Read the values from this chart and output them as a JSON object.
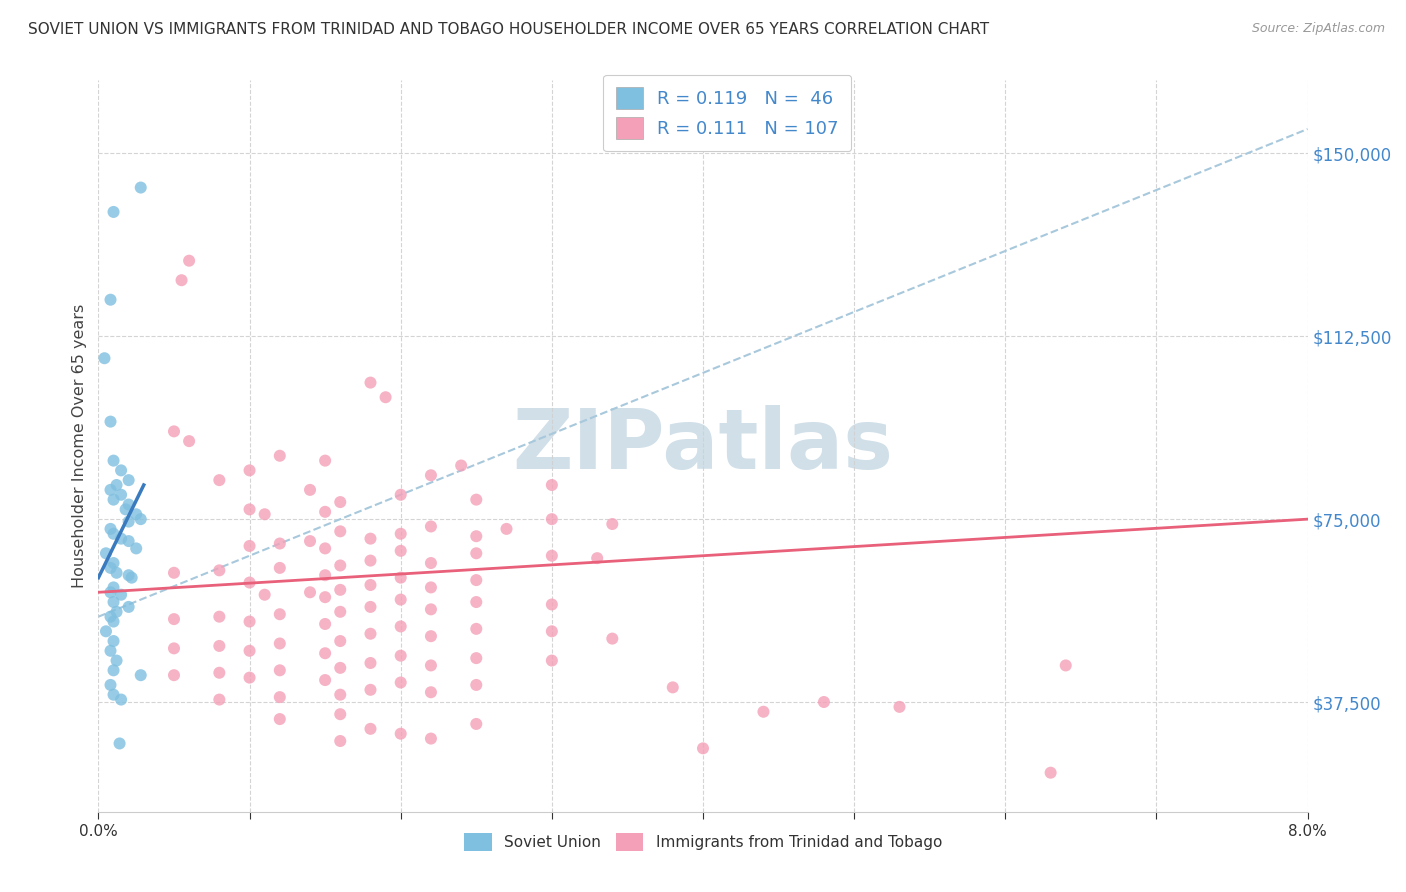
{
  "title": "SOVIET UNION VS IMMIGRANTS FROM TRINIDAD AND TOBAGO HOUSEHOLDER INCOME OVER 65 YEARS CORRELATION CHART",
  "source": "Source: ZipAtlas.com",
  "ylabel": "Householder Income Over 65 years",
  "ytick_labels": [
    "$37,500",
    "$75,000",
    "$112,500",
    "$150,000"
  ],
  "ytick_values": [
    37500,
    75000,
    112500,
    150000
  ],
  "xmin": 0.0,
  "xmax": 0.08,
  "ymin": 15000,
  "ymax": 165000,
  "legend_line1": "R = 0.119   N =  46",
  "legend_line2": "R = 0.111   N = 107",
  "color_blue": "#7fbfdf",
  "color_pink": "#f4a0b8",
  "color_blue_line": "#3a7bbf",
  "color_pink_line": "#e8607a",
  "color_dashed": "#a8c8dc",
  "watermark": "ZIPatlas",
  "watermark_color": "#d0dfe8",
  "blue_line_x": [
    0.0,
    0.003
  ],
  "blue_line_y": [
    63000,
    82000
  ],
  "pink_line_x": [
    0.0,
    0.08
  ],
  "pink_line_y": [
    60000,
    75000
  ],
  "dashed_line_x": [
    0.0,
    0.08
  ],
  "dashed_line_y": [
    55000,
    155000
  ],
  "soviet_points": [
    [
      0.001,
      138000
    ],
    [
      0.0028,
      143000
    ],
    [
      0.0008,
      120000
    ],
    [
      0.0004,
      108000
    ],
    [
      0.0008,
      95000
    ],
    [
      0.001,
      87000
    ],
    [
      0.0015,
      85000
    ],
    [
      0.002,
      83000
    ],
    [
      0.0012,
      82000
    ],
    [
      0.0008,
      81000
    ],
    [
      0.0015,
      80000
    ],
    [
      0.001,
      79000
    ],
    [
      0.002,
      78000
    ],
    [
      0.0018,
      77000
    ],
    [
      0.0025,
      76000
    ],
    [
      0.0028,
      75000
    ],
    [
      0.002,
      74500
    ],
    [
      0.0008,
      73000
    ],
    [
      0.001,
      72000
    ],
    [
      0.0015,
      71000
    ],
    [
      0.002,
      70500
    ],
    [
      0.0025,
      69000
    ],
    [
      0.0005,
      68000
    ],
    [
      0.001,
      66000
    ],
    [
      0.0008,
      65000
    ],
    [
      0.0012,
      64000
    ],
    [
      0.002,
      63500
    ],
    [
      0.0022,
      63000
    ],
    [
      0.001,
      61000
    ],
    [
      0.0008,
      60000
    ],
    [
      0.0015,
      59500
    ],
    [
      0.001,
      58000
    ],
    [
      0.002,
      57000
    ],
    [
      0.0012,
      56000
    ],
    [
      0.0008,
      55000
    ],
    [
      0.001,
      54000
    ],
    [
      0.0005,
      52000
    ],
    [
      0.001,
      50000
    ],
    [
      0.0008,
      48000
    ],
    [
      0.0012,
      46000
    ],
    [
      0.001,
      44000
    ],
    [
      0.0028,
      43000
    ],
    [
      0.0008,
      41000
    ],
    [
      0.001,
      39000
    ],
    [
      0.0015,
      38000
    ],
    [
      0.0014,
      29000
    ]
  ],
  "trinidad_points": [
    [
      0.006,
      128000
    ],
    [
      0.0055,
      124000
    ],
    [
      0.018,
      103000
    ],
    [
      0.019,
      100000
    ],
    [
      0.005,
      93000
    ],
    [
      0.006,
      91000
    ],
    [
      0.012,
      88000
    ],
    [
      0.015,
      87000
    ],
    [
      0.024,
      86000
    ],
    [
      0.01,
      85000
    ],
    [
      0.022,
      84000
    ],
    [
      0.008,
      83000
    ],
    [
      0.03,
      82000
    ],
    [
      0.014,
      81000
    ],
    [
      0.02,
      80000
    ],
    [
      0.025,
      79000
    ],
    [
      0.016,
      78500
    ],
    [
      0.01,
      77000
    ],
    [
      0.015,
      76500
    ],
    [
      0.011,
      76000
    ],
    [
      0.03,
      75000
    ],
    [
      0.034,
      74000
    ],
    [
      0.022,
      73500
    ],
    [
      0.027,
      73000
    ],
    [
      0.016,
      72500
    ],
    [
      0.02,
      72000
    ],
    [
      0.025,
      71500
    ],
    [
      0.018,
      71000
    ],
    [
      0.014,
      70500
    ],
    [
      0.012,
      70000
    ],
    [
      0.01,
      69500
    ],
    [
      0.015,
      69000
    ],
    [
      0.02,
      68500
    ],
    [
      0.025,
      68000
    ],
    [
      0.03,
      67500
    ],
    [
      0.033,
      67000
    ],
    [
      0.018,
      66500
    ],
    [
      0.022,
      66000
    ],
    [
      0.016,
      65500
    ],
    [
      0.012,
      65000
    ],
    [
      0.008,
      64500
    ],
    [
      0.005,
      64000
    ],
    [
      0.015,
      63500
    ],
    [
      0.02,
      63000
    ],
    [
      0.025,
      62500
    ],
    [
      0.01,
      62000
    ],
    [
      0.018,
      61500
    ],
    [
      0.022,
      61000
    ],
    [
      0.016,
      60500
    ],
    [
      0.014,
      60000
    ],
    [
      0.011,
      59500
    ],
    [
      0.015,
      59000
    ],
    [
      0.02,
      58500
    ],
    [
      0.025,
      58000
    ],
    [
      0.03,
      57500
    ],
    [
      0.018,
      57000
    ],
    [
      0.022,
      56500
    ],
    [
      0.016,
      56000
    ],
    [
      0.012,
      55500
    ],
    [
      0.008,
      55000
    ],
    [
      0.005,
      54500
    ],
    [
      0.01,
      54000
    ],
    [
      0.015,
      53500
    ],
    [
      0.02,
      53000
    ],
    [
      0.025,
      52500
    ],
    [
      0.03,
      52000
    ],
    [
      0.018,
      51500
    ],
    [
      0.022,
      51000
    ],
    [
      0.034,
      50500
    ],
    [
      0.016,
      50000
    ],
    [
      0.012,
      49500
    ],
    [
      0.008,
      49000
    ],
    [
      0.005,
      48500
    ],
    [
      0.01,
      48000
    ],
    [
      0.015,
      47500
    ],
    [
      0.02,
      47000
    ],
    [
      0.025,
      46500
    ],
    [
      0.03,
      46000
    ],
    [
      0.018,
      45500
    ],
    [
      0.022,
      45000
    ],
    [
      0.016,
      44500
    ],
    [
      0.012,
      44000
    ],
    [
      0.008,
      43500
    ],
    [
      0.005,
      43000
    ],
    [
      0.01,
      42500
    ],
    [
      0.015,
      42000
    ],
    [
      0.02,
      41500
    ],
    [
      0.025,
      41000
    ],
    [
      0.038,
      40500
    ],
    [
      0.018,
      40000
    ],
    [
      0.022,
      39500
    ],
    [
      0.016,
      39000
    ],
    [
      0.012,
      38500
    ],
    [
      0.008,
      38000
    ],
    [
      0.048,
      37500
    ],
    [
      0.053,
      36500
    ],
    [
      0.044,
      35500
    ],
    [
      0.016,
      35000
    ],
    [
      0.012,
      34000
    ],
    [
      0.025,
      33000
    ],
    [
      0.018,
      32000
    ],
    [
      0.02,
      31000
    ],
    [
      0.022,
      30000
    ],
    [
      0.016,
      29500
    ],
    [
      0.04,
      28000
    ],
    [
      0.063,
      23000
    ],
    [
      0.064,
      45000
    ]
  ]
}
